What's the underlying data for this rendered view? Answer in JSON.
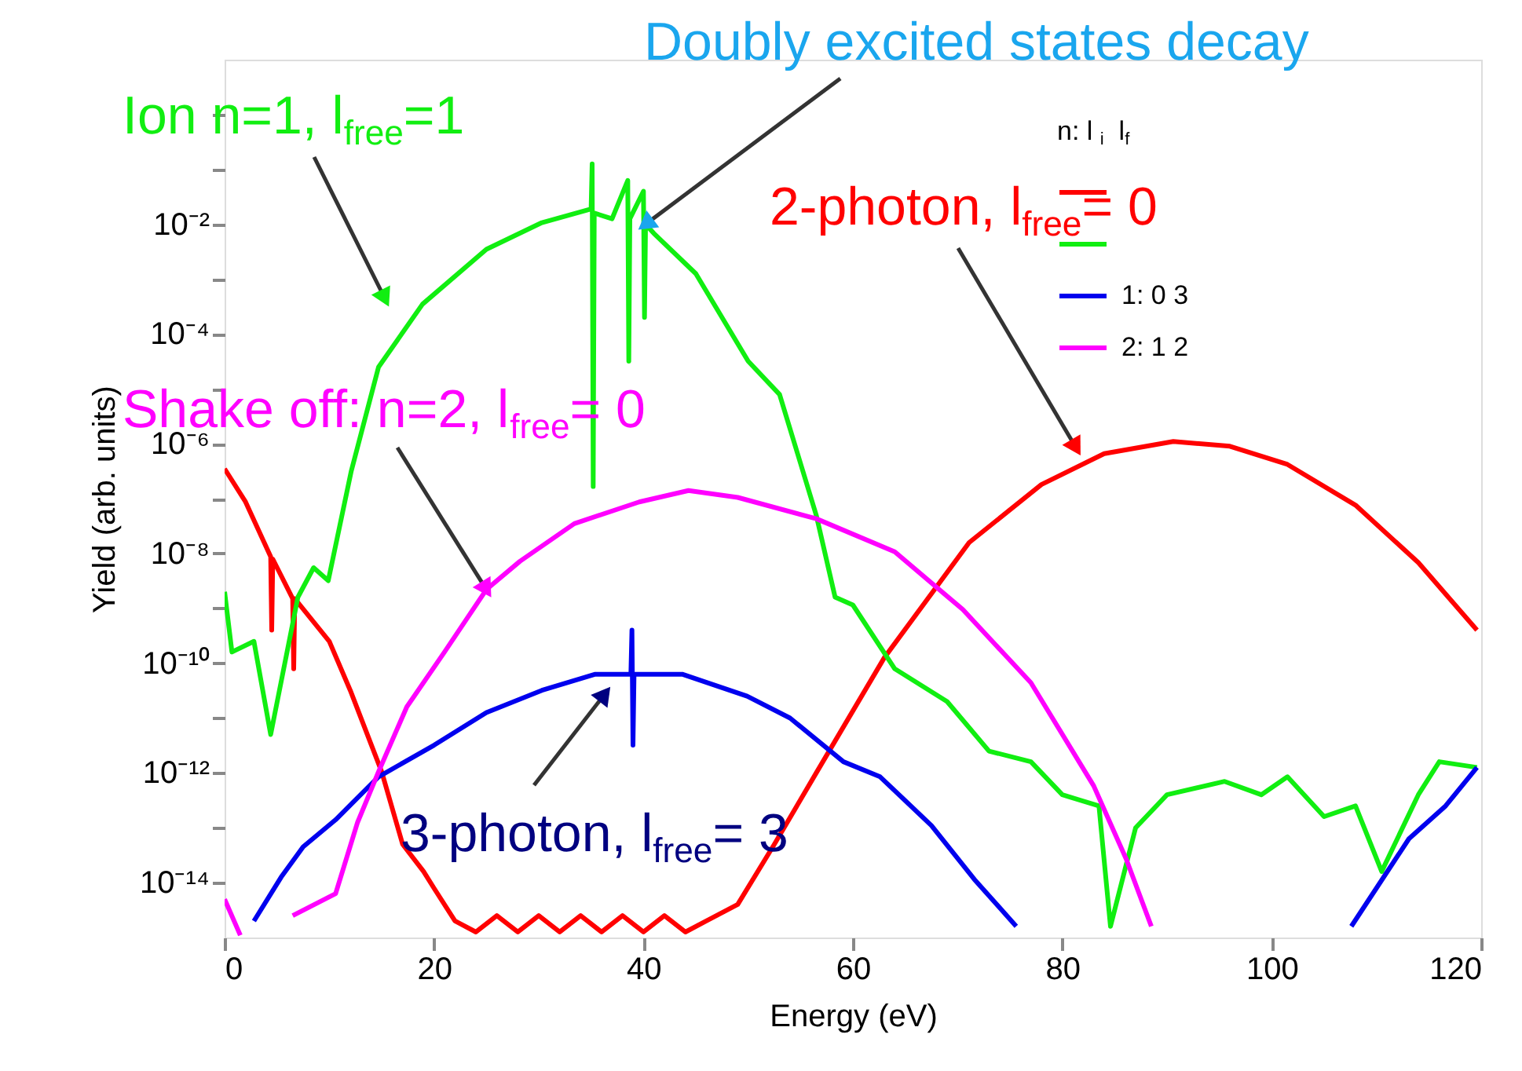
{
  "chart_data": {
    "type": "line",
    "xlabel": "Energy (eV)",
    "ylabel": "Yield (arb. units)",
    "legend_title": "n:  l$_{i}$  l$_{f}$",
    "legend": "top right",
    "log": true,
    "grid": false,
    "marker": "none",
    "line_style": "solid",
    "xlim": [
      0,
      120
    ],
    "xticks": [
      0,
      20,
      40,
      60,
      80,
      100,
      120
    ],
    "ylim": [
      1e-15,
      10
    ],
    "yticks": [
      {
        "value": 1,
        "label": null
      },
      {
        "value": 0.1,
        "label": null
      },
      {
        "value": 0.01,
        "label": "10⁻²"
      },
      {
        "value": 0.001,
        "label": null
      },
      {
        "value": 0.0001,
        "label": "10⁻⁴"
      },
      {
        "value": 1e-05,
        "label": null
      },
      {
        "value": 1e-06,
        "label": "10⁻⁶"
      },
      {
        "value": 1e-07,
        "label": null
      },
      {
        "value": 1e-08,
        "label": "10⁻⁸"
      },
      {
        "value": 1e-09,
        "label": null
      },
      {
        "value": 1e-10,
        "label": "10⁻¹⁰"
      },
      {
        "value": 1e-11,
        "label": null
      },
      {
        "value": 1e-12,
        "label": "10⁻¹²"
      },
      {
        "value": 1e-13,
        "label": null
      },
      {
        "value": 1e-14,
        "label": "10⁻¹⁴"
      }
    ],
    "series": [
      {
        "color": "#ff0000",
        "x": [
          0,
          2,
          4.4,
          4.5,
          4.6,
          6.5,
          6.6,
          6.7,
          10,
          12,
          15,
          17,
          19,
          20,
          22,
          24,
          26,
          28,
          30,
          32,
          34,
          36,
          38,
          40,
          42,
          44,
          46,
          49,
          52.5,
          56.5,
          63,
          71.1,
          78,
          84,
          90.6,
          96,
          101.5,
          108,
          114,
          119.6
        ],
        "values": [
          3.5e-07,
          8.7e-08,
          8.7e-09,
          4e-10,
          7.9e-09,
          1.5e-09,
          7.9e-11,
          1.5e-09,
          2.5e-10,
          3.2e-11,
          1.05e-12,
          5e-14,
          1.6e-14,
          7.9e-15,
          2e-15,
          1.26e-15,
          2.5e-15,
          1.26e-15,
          2.5e-15,
          1.26e-15,
          2.5e-15,
          1.26e-15,
          2.5e-15,
          1.26e-15,
          2.5e-15,
          1.26e-15,
          2e-15,
          4e-15,
          5e-14,
          1e-12,
          1.26e-10,
          1.58e-08,
          1.8e-07,
          6.6e-07,
          1.1e-06,
          9e-07,
          4.2e-07,
          7.6e-08,
          6.8e-09,
          4e-10
        ]
      },
      {
        "color": "#11ee11",
        "x": [
          0,
          0.7,
          2.8,
          4.4,
          7,
          8.5,
          9.9,
          12.1,
          14.7,
          18.9,
          25,
          30.3,
          35,
          35.1,
          35.2,
          35.3,
          37,
          38.5,
          38.6,
          38.7,
          40,
          40.1,
          40.2,
          41,
          45,
          50,
          53,
          56.5,
          58.3,
          60,
          64,
          69,
          73,
          77,
          80,
          83.5,
          84.6,
          87,
          90,
          95.5,
          99,
          101.5,
          105,
          108,
          110.5,
          114,
          116,
          119.6
        ],
        "values": [
          2e-09,
          1.6e-10,
          2.5e-10,
          5e-12,
          1.6e-09,
          5.5e-09,
          3.2e-09,
          3.2e-07,
          2.5e-05,
          0.00035,
          0.0035,
          0.0107,
          0.019,
          0.126,
          1.66e-07,
          0.016,
          0.0126,
          0.063,
          3.2e-05,
          0.0126,
          0.04,
          0.0002,
          0.01,
          0.0068,
          0.00126,
          3.2e-05,
          7.9e-06,
          5e-08,
          1.6e-09,
          1.15e-09,
          7.9e-11,
          2e-11,
          2.5e-12,
          1.6e-12,
          4e-13,
          2.5e-13,
          1.6e-15,
          1e-13,
          4e-13,
          7e-13,
          4e-13,
          8.5e-13,
          1.6e-13,
          2.5e-13,
          1.6e-14,
          4e-13,
          1.6e-12,
          1.26e-12
        ]
      },
      {
        "name": "1:  0 3",
        "color": "#0000ee",
        "x": [
          2.8,
          5.4,
          7.5,
          10.6,
          14.7,
          20,
          25,
          30.3,
          35.4,
          38.8,
          38.9,
          39.0,
          39.1,
          43.7,
          49.9,
          54,
          59.1,
          62.6,
          67.5,
          71.6,
          75.6,
          90,
          107.6,
          113.1,
          116.6,
          119.6
        ],
        "values": [
          2e-15,
          1.26e-14,
          4.5e-14,
          1.4e-13,
          8.5e-13,
          3.2e-12,
          1.26e-11,
          3.2e-11,
          6.3e-11,
          6.3e-11,
          4e-10,
          3.2e-12,
          6.3e-11,
          6.3e-11,
          2.5e-11,
          1e-11,
          1.6e-12,
          8.5e-13,
          1.1e-13,
          1.15e-14,
          1.6e-15,
          null,
          1.6e-15,
          6.3e-14,
          2.5e-13,
          1.26e-12
        ]
      },
      {
        "name": "2:  1 2",
        "color": "#ff00ff",
        "x": [
          0,
          1.5,
          4,
          6.5,
          10.6,
          12.7,
          14.7,
          17.4,
          21,
          25,
          28.2,
          33.4,
          39.6,
          44.3,
          49,
          56.5,
          64,
          70.5,
          77,
          83,
          86.1,
          88.5
        ],
        "values": [
          5e-15,
          1.1e-15,
          null,
          2.5e-15,
          6.3e-15,
          1.26e-13,
          1.05e-12,
          1.6e-11,
          1.6e-10,
          2.2e-09,
          7.2e-09,
          3.5e-08,
          8.7e-08,
          1.4e-07,
          1.05e-07,
          4.3e-08,
          1.07e-08,
          9.5e-10,
          4.4e-11,
          5.8e-13,
          2.7e-14,
          1.6e-15
        ]
      }
    ],
    "annotations": [
      "Ion n=1, l$_{free}$=1",
      {
        "text": "Doubly excited states decay",
        "x": 40.2,
        "y": 0.01
      },
      "2-photon, l$_{free}$= 0",
      {
        "text": "Shake off: n=2, l$_{free}$= 0",
        "x": 25,
        "y": 2.2e-09
      },
      "3-photon, l$_{free}$= 3"
    ]
  }
}
